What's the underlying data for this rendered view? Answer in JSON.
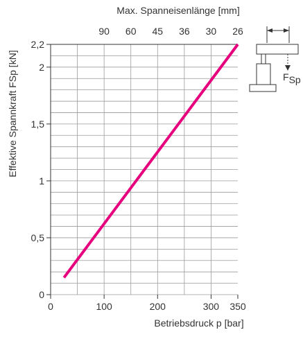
{
  "chart_data": {
    "type": "line",
    "xlabel": "Betriebsdruck p [bar]",
    "ylabel": "Effektive Spannkraft FSp [kN]",
    "top_axis_label": "Max. Spanneisenlänge [mm]",
    "xlim": [
      0,
      350
    ],
    "ylim": [
      0,
      2.2
    ],
    "x_ticks": [
      0,
      100,
      200,
      300,
      350
    ],
    "x_tick_labels": [
      "0",
      "100",
      "200",
      "300",
      "350"
    ],
    "y_ticks": [
      0,
      0.5,
      1,
      1.5,
      2,
      2.2
    ],
    "y_tick_labels": [
      "0",
      "0,5",
      "1",
      "1,5",
      "2",
      "2,2"
    ],
    "top_ticks": [
      {
        "label": "90",
        "x": 100
      },
      {
        "label": "60",
        "x": 150
      },
      {
        "label": "45",
        "x": 200
      },
      {
        "label": "36",
        "x": 250
      },
      {
        "label": "30",
        "x": 300
      },
      {
        "label": "26",
        "x": 350
      }
    ],
    "grid": true,
    "grid_x_step": 50,
    "grid_y_step": 0.1,
    "series": [
      {
        "color": "#e6007e",
        "x": [
          25,
          350
        ],
        "y": [
          0.15,
          2.2
        ]
      }
    ]
  },
  "diagram": {
    "force_label_main": "F",
    "force_label_sub": "Sp"
  },
  "colors": {
    "line": "#e6007e",
    "grid": "#9a9a9a",
    "axis": "#333333"
  }
}
